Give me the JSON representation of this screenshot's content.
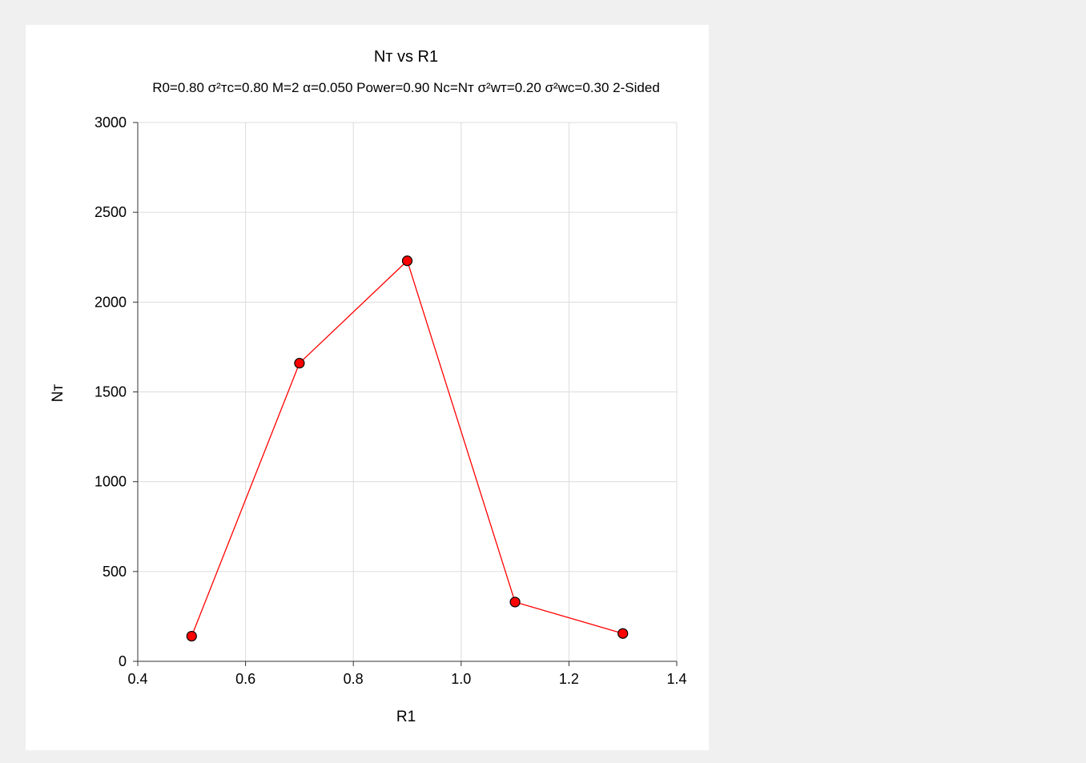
{
  "chart_data": {
    "type": "line",
    "title": "Nᴛ vs R1",
    "subtitle": "R0=0.80 σ²ᴛc=0.80 M=2 α=0.050 Power=0.90 Nc=Nᴛ σ²wᴛ=0.20 σ²wc=0.30 2-Sided",
    "xlabel": "R1",
    "ylabel": "Nᴛ",
    "xlim": [
      0.4,
      1.4
    ],
    "ylim": [
      0,
      3000
    ],
    "x_ticks": [
      "0.4",
      "0.6",
      "0.8",
      "1.0",
      "1.2",
      "1.4"
    ],
    "x_tick_values": [
      0.4,
      0.6,
      0.8,
      1.0,
      1.2,
      1.4
    ],
    "y_ticks": [
      "0",
      "500",
      "1000",
      "1500",
      "2000",
      "2500",
      "3000"
    ],
    "y_tick_values": [
      0,
      500,
      1000,
      1500,
      2000,
      2500,
      3000
    ],
    "grid": true,
    "series": [
      {
        "x": [
          0.5,
          0.7,
          0.9,
          1.1,
          1.3
        ],
        "values": [
          140,
          1660,
          2230,
          330,
          155
        ],
        "color": "#ff0000",
        "marker_color": "#ff0000",
        "marker_edge": "#000000"
      }
    ],
    "grid_color": "#dcdcdc",
    "background": "#ffffff"
  }
}
